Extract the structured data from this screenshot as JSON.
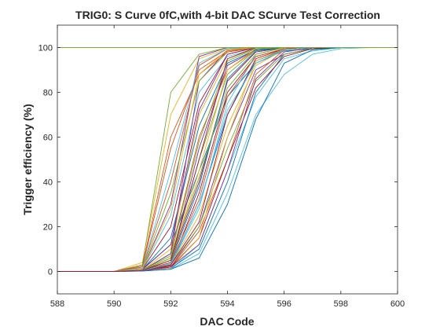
{
  "chart_data": {
    "type": "line",
    "title": "TRIG0: S Curve 0fC,with 4-bit DAC SCurve Test Correction",
    "xlabel": "DAC Code",
    "ylabel": "Trigger efficiency (%)",
    "xlim": [
      588,
      600
    ],
    "ylim": [
      -10,
      110
    ],
    "xticks": [
      588,
      590,
      592,
      594,
      596,
      598,
      600
    ],
    "yticks": [
      0,
      20,
      40,
      60,
      80,
      100
    ],
    "grid": false,
    "legend": "none",
    "x": [
      588,
      589,
      590,
      591,
      592,
      593,
      594,
      595,
      596,
      597,
      598,
      599,
      600
    ],
    "series": [
      {
        "color": "#0072BD",
        "values": [
          0,
          0,
          0,
          1.0,
          12.0,
          45.0,
          78.0,
          93.0,
          98.5,
          99.5,
          100,
          100,
          100
        ]
      },
      {
        "color": "#D95319",
        "values": [
          0,
          0,
          0,
          0.5,
          8.0,
          60.0,
          90.0,
          99.0,
          100,
          100,
          100,
          100,
          100
        ]
      },
      {
        "color": "#EDB120",
        "values": [
          0,
          0,
          0,
          4.0,
          70.0,
          95.0,
          99.5,
          100,
          100,
          100,
          100,
          100,
          100
        ]
      },
      {
        "color": "#7E2F8E",
        "values": [
          0,
          0,
          0,
          0.3,
          2.0,
          20.0,
          60.0,
          90.0,
          97.0,
          99.5,
          100,
          100,
          100
        ]
      },
      {
        "color": "#77AC30",
        "values": [
          0,
          0,
          0,
          3.0,
          80.0,
          97.0,
          100,
          100,
          100,
          100,
          100,
          100,
          100
        ]
      },
      {
        "color": "#4DBEEE",
        "values": [
          0,
          0,
          0,
          0.2,
          1.0,
          12.0,
          45.0,
          78.0,
          95.0,
          98.5,
          100,
          100,
          100
        ]
      },
      {
        "color": "#A2142F",
        "values": [
          0,
          0,
          0,
          0.3,
          5.0,
          40.0,
          85.0,
          98.0,
          100,
          100,
          100,
          100,
          100
        ]
      },
      {
        "color": "#0072BD",
        "values": [
          0,
          0,
          0,
          0.5,
          3.0,
          30.0,
          70.0,
          94.0,
          99.0,
          100,
          100,
          100,
          100
        ]
      },
      {
        "color": "#D95319",
        "values": [
          0,
          0,
          0,
          2.0,
          55.0,
          90.0,
          98.5,
          100,
          100,
          100,
          100,
          100,
          100
        ]
      },
      {
        "color": "#EDB120",
        "values": [
          0,
          0,
          0,
          0.3,
          3.0,
          25.0,
          65.0,
          92.0,
          99.0,
          100,
          100,
          100,
          100
        ]
      },
      {
        "color": "#7E2F8E",
        "values": [
          0,
          0,
          0,
          1.0,
          30.0,
          96.0,
          100,
          100,
          100,
          100,
          100,
          100,
          100
        ]
      },
      {
        "color": "#77AC30",
        "values": [
          0,
          0,
          0,
          0.5,
          6.0,
          50.0,
          88.0,
          99.0,
          100,
          100,
          100,
          100,
          100
        ]
      },
      {
        "color": "#4DBEEE",
        "values": [
          0,
          0,
          0,
          1.0,
          25.0,
          80.0,
          96.0,
          99.5,
          100,
          100,
          100,
          100,
          100
        ]
      },
      {
        "color": "#A2142F",
        "values": [
          0,
          0,
          0,
          0.3,
          2.5,
          35.0,
          80.0,
          96.0,
          99.5,
          100,
          100,
          100,
          100
        ]
      },
      {
        "color": "#0072BD",
        "values": [
          0,
          0,
          0,
          0.2,
          1.5,
          10.0,
          40.0,
          80.0,
          97.0,
          99.5,
          100,
          100,
          100
        ]
      },
      {
        "color": "#D95319",
        "values": [
          0,
          0,
          0,
          1.5,
          40.0,
          92.0,
          99.5,
          100,
          100,
          100,
          100,
          100,
          100
        ]
      },
      {
        "color": "#EDB120",
        "values": [
          0,
          0,
          0,
          0.5,
          10.0,
          70.0,
          95.0,
          99.5,
          100,
          100,
          100,
          100,
          100
        ]
      },
      {
        "color": "#7E2F8E",
        "values": [
          0,
          0,
          0,
          0.4,
          4.0,
          55.0,
          92.0,
          99.0,
          100,
          100,
          100,
          100,
          100
        ]
      },
      {
        "color": "#77AC30",
        "values": [
          0,
          0,
          0,
          0.3,
          3.0,
          20.0,
          55.0,
          85.0,
          97.0,
          99.5,
          100,
          100,
          100
        ]
      },
      {
        "color": "#4DBEEE",
        "values": [
          0,
          0,
          0,
          0.2,
          1.0,
          8.0,
          35.0,
          70.0,
          88.0,
          97.0,
          99.5,
          100,
          100
        ]
      },
      {
        "color": "#A2142F",
        "values": [
          0,
          0,
          0,
          1.0,
          20.0,
          75.0,
          97.0,
          100,
          100,
          100,
          100,
          100,
          100
        ]
      },
      {
        "color": "#0072BD",
        "values": [
          0,
          0,
          0,
          0.8,
          15.0,
          65.0,
          93.0,
          99.0,
          100,
          100,
          100,
          100,
          100
        ]
      },
      {
        "color": "#D95319",
        "values": [
          0,
          0,
          0,
          0.3,
          2.0,
          18.0,
          50.0,
          88.0,
          99.0,
          100,
          100,
          100,
          100
        ]
      },
      {
        "color": "#EDB120",
        "values": [
          0,
          0,
          0,
          0.6,
          5.0,
          45.0,
          90.0,
          99.5,
          100,
          100,
          100,
          100,
          100
        ]
      },
      {
        "color": "#7E2F8E",
        "values": [
          0,
          0,
          0,
          0.5,
          8.0,
          85.0,
          99.0,
          100,
          100,
          100,
          100,
          100,
          100
        ]
      },
      {
        "color": "#77AC30",
        "values": [
          0,
          0,
          0,
          1.0,
          35.0,
          85.0,
          98.0,
          100,
          100,
          100,
          100,
          100,
          100
        ]
      },
      {
        "color": "#4DBEEE",
        "values": [
          0,
          0,
          0,
          0.3,
          3.0,
          28.0,
          75.0,
          97.0,
          100,
          100,
          100,
          100,
          100
        ]
      },
      {
        "color": "#A2142F",
        "values": [
          0,
          0,
          0,
          0.4,
          2.0,
          15.0,
          50.0,
          82.0,
          96.0,
          99.5,
          100,
          100,
          100
        ]
      },
      {
        "color": "#0072BD",
        "values": [
          0,
          0,
          0,
          0.5,
          4.0,
          38.0,
          86.0,
          98.5,
          100,
          100,
          100,
          100,
          100
        ]
      },
      {
        "color": "#D95319",
        "values": [
          0,
          0,
          0,
          2.5,
          60.0,
          88.0,
          98.0,
          100,
          100,
          100,
          100,
          100,
          100
        ]
      },
      {
        "color": "#EDB120",
        "values": [
          0,
          0,
          0,
          0.3,
          1.5,
          15.0,
          60.0,
          94.0,
          99.5,
          100,
          100,
          100,
          100
        ]
      },
      {
        "color": "#7E2F8E",
        "values": [
          0,
          0,
          0,
          0.8,
          12.0,
          72.0,
          97.0,
          100,
          100,
          100,
          100,
          100,
          100
        ]
      },
      {
        "color": "#77AC30",
        "values": [
          0,
          0,
          0,
          0.5,
          6.0,
          42.0,
          82.0,
          97.0,
          100,
          100,
          100,
          100,
          100
        ]
      },
      {
        "color": "#4DBEEE",
        "values": [
          0,
          0,
          0,
          1.5,
          45.0,
          93.0,
          99.5,
          100,
          100,
          100,
          100,
          100,
          100
        ]
      },
      {
        "color": "#A2142F",
        "values": [
          0,
          0,
          0,
          0.4,
          3.0,
          22.0,
          70.0,
          95.0,
          99.5,
          100,
          100,
          100,
          100
        ]
      },
      {
        "color": "#0072BD",
        "values": [
          0,
          0,
          0,
          0.2,
          1.0,
          6.0,
          30.0,
          68.0,
          93.0,
          99.0,
          100,
          100,
          100
        ]
      },
      {
        "color": "#D95319",
        "values": [
          0,
          0,
          0,
          0.5,
          4.0,
          32.0,
          78.0,
          96.0,
          99.5,
          100,
          100,
          100,
          100
        ]
      },
      {
        "color": "#EDB120",
        "values": [
          0,
          0,
          0,
          1.0,
          28.0,
          88.0,
          99.0,
          100,
          100,
          100,
          100,
          100,
          100
        ]
      },
      {
        "color": "#7E2F8E",
        "values": [
          0,
          0,
          0,
          0.3,
          2.0,
          12.0,
          45.0,
          86.0,
          98.0,
          100,
          100,
          100,
          100
        ]
      },
      {
        "color": "#77AC30",
        "values": [
          0,
          0,
          0,
          0.6,
          7.0,
          58.0,
          94.0,
          99.5,
          100,
          100,
          100,
          100,
          100
        ]
      },
      {
        "color": "#4DBEEE",
        "values": [
          0,
          0,
          0,
          0.4,
          3.5,
          30.0,
          72.0,
          93.0,
          99.0,
          100,
          100,
          100,
          100
        ]
      },
      {
        "color": "#A2142F",
        "values": [
          0,
          0,
          0,
          0.5,
          5.0,
          50.0,
          95.0,
          100,
          100,
          100,
          100,
          100,
          100
        ]
      },
      {
        "color": "#77AC30",
        "values": [
          100,
          100,
          100,
          100,
          100,
          100,
          100,
          100,
          100,
          100,
          100,
          100,
          100
        ]
      }
    ]
  }
}
